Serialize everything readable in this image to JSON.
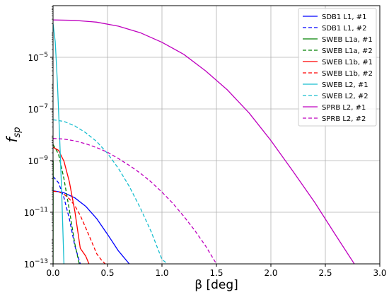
{
  "chart_data": {
    "type": "line",
    "xlabel": "β [deg]",
    "ylabel": "f",
    "ylabel_subscript": "sp",
    "xlim": [
      0.0,
      3.0
    ],
    "ylim": [
      1e-13,
      0.001
    ],
    "yscale": "log",
    "grid": true,
    "legend_position": "top-right",
    "x_ticks": [
      0.0,
      0.5,
      1.0,
      1.5,
      2.0,
      2.5,
      3.0
    ],
    "x_tick_labels": [
      "0.0",
      "0.5",
      "1.0",
      "1.5",
      "2.0",
      "2.5",
      "3.0"
    ],
    "y_ticks": [
      1e-13,
      1e-11,
      1e-09,
      1e-07,
      1e-05
    ],
    "y_tick_labels": [
      {
        "base": "10",
        "exp": "−13"
      },
      {
        "base": "10",
        "exp": "−11"
      },
      {
        "base": "10",
        "exp": "−9"
      },
      {
        "base": "10",
        "exp": "−7"
      },
      {
        "base": "10",
        "exp": "−5"
      }
    ],
    "series": [
      {
        "name": "SDB1 L1, #1",
        "color": "#0000ff",
        "dash": "solid",
        "x": [
          0.0,
          0.1,
          0.2,
          0.3,
          0.4,
          0.5,
          0.6,
          0.7
        ],
        "y": [
          6.8e-11,
          5.7e-11,
          3.6e-11,
          1.7e-11,
          5.7e-12,
          1.4e-12,
          3.2e-13,
          1e-13
        ]
      },
      {
        "name": "SDB1 L1, #2",
        "color": "#0000ff",
        "dash": "dashed",
        "x": [
          0.0,
          0.05,
          0.1,
          0.15,
          0.2,
          0.25
        ],
        "y": [
          2.4e-10,
          1.4e-10,
          3.7e-11,
          5.5e-12,
          5e-13,
          1e-13
        ]
      },
      {
        "name": "SWEB L1a, #1",
        "color": "#008000",
        "dash": "solid",
        "x": [
          0.0,
          0.0005,
          0.001
        ],
        "y": [
          1e-13,
          1e-11,
          1e-09
        ]
      },
      {
        "name": "SWEB L1a, #2",
        "color": "#008000",
        "dash": "dashed",
        "x": [
          0.0,
          0.05,
          0.1,
          0.15,
          0.2,
          0.24
        ],
        "y": [
          4.2e-09,
          1.8e-09,
          2e-10,
          1.2e-11,
          6e-13,
          1e-13
        ]
      },
      {
        "name": "SWEB L1b, #1",
        "color": "#ff0000",
        "dash": "solid",
        "x": [
          0.0,
          0.05,
          0.1,
          0.15,
          0.2,
          0.25,
          0.3,
          0.33
        ],
        "y": [
          3.3e-09,
          2.5e-09,
          9.5e-10,
          1.5e-10,
          1.1e-11,
          4e-13,
          2e-13,
          1e-13
        ]
      },
      {
        "name": "SWEB L1b, #2",
        "color": "#ff0000",
        "dash": "dashed",
        "x": [
          0.0,
          0.05,
          0.1,
          0.15,
          0.2,
          0.25,
          0.3,
          0.35,
          0.4,
          0.45,
          0.48
        ],
        "y": [
          6.5e-11,
          6.2e-11,
          5e-11,
          3.3e-11,
          1.8e-11,
          7.5e-12,
          2.5e-12,
          8e-13,
          2.5e-13,
          1.3e-13,
          1e-13
        ]
      },
      {
        "name": "SWEB L2, #1",
        "color": "#17becf",
        "dash": "solid",
        "x": [
          0.0,
          0.02,
          0.04,
          0.06,
          0.08,
          0.1
        ],
        "y": [
          0.0002,
          4e-05,
          1e-06,
          1e-08,
          5e-11,
          1e-13
        ]
      },
      {
        "name": "SWEB L2, #2",
        "color": "#17becf",
        "dash": "dashed",
        "x": [
          0.0,
          0.1,
          0.2,
          0.3,
          0.4,
          0.5,
          0.6,
          0.7,
          0.8,
          0.9,
          1.0,
          1.05
        ],
        "y": [
          3.8e-08,
          3.3e-08,
          2.2e-08,
          1.2e-08,
          5.5e-09,
          1.9e-09,
          5e-10,
          1e-10,
          1.5e-11,
          1.8e-12,
          1.5e-13,
          1e-13
        ]
      },
      {
        "name": "SPRB L2, #1",
        "color": "#bf00bf",
        "dash": "solid",
        "x": [
          0.0,
          0.2,
          0.4,
          0.6,
          0.8,
          1.0,
          1.2,
          1.4,
          1.6,
          1.8,
          2.0,
          2.2,
          2.4,
          2.6,
          2.8,
          3.0
        ],
        "y": [
          0.00028,
          0.00027,
          0.00023,
          0.00016,
          9e-05,
          3.8e-05,
          1.3e-05,
          3e-06,
          5.5e-07,
          7e-08,
          6e-09,
          4e-10,
          2.5e-11,
          1.2e-12,
          6e-14,
          1e-13
        ]
      },
      {
        "name": "SPRB L2, #2",
        "color": "#bf00bf",
        "dash": "dashed",
        "x": [
          0.0,
          0.1,
          0.2,
          0.3,
          0.4,
          0.5,
          0.6,
          0.7,
          0.8,
          0.9,
          1.0,
          1.1,
          1.2,
          1.3,
          1.4,
          1.5
        ],
        "y": [
          7.2e-09,
          6.8e-09,
          5.8e-09,
          4.5e-09,
          3.2e-09,
          2.1e-09,
          1.2e-09,
          6.5e-10,
          3.3e-10,
          1.5e-10,
          6e-11,
          2.2e-11,
          7e-12,
          2e-12,
          5e-13,
          1e-13
        ]
      }
    ]
  }
}
